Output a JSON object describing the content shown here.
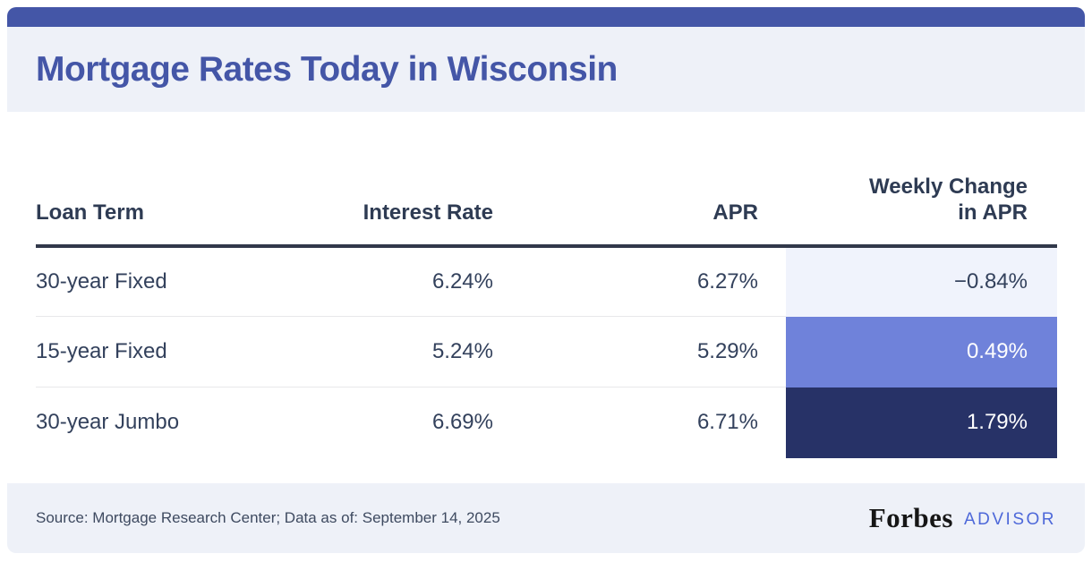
{
  "card": {
    "title": "Mortgage Rates Today in Wisconsin"
  },
  "table": {
    "headers": {
      "loan_term": "Loan Term",
      "interest_rate": "Interest Rate",
      "apr": "APR",
      "weekly_change": "Weekly Change in APR"
    },
    "rows": [
      {
        "loan_term": "30-year Fixed",
        "interest_rate": "6.24%",
        "apr": "6.27%",
        "weekly_change": "−0.84%",
        "change_bg": "#f0f3fc",
        "change_color": "#33415c"
      },
      {
        "loan_term": "15-year Fixed",
        "interest_rate": "5.24%",
        "apr": "5.29%",
        "weekly_change": "0.49%",
        "change_bg": "#6f82da",
        "change_color": "#ffffff"
      },
      {
        "loan_term": "30-year Jumbo",
        "interest_rate": "6.69%",
        "apr": "6.71%",
        "weekly_change": "1.79%",
        "change_bg": "#273267",
        "change_color": "#ffffff"
      }
    ]
  },
  "footer": {
    "source": "Source: Mortgage Research Center; Data as of: September 14, 2025",
    "brand": "Forbes",
    "brand_suffix": "ADVISOR"
  },
  "colors": {
    "accent_bar": "#4456a7",
    "title_text": "#4456a7",
    "panel_bg": "#eef1f8",
    "header_text": "#2e3b53",
    "row_text": "#33415c",
    "header_border": "#31384a",
    "row_divider": "#e8e8ea",
    "forbes_black": "#161616",
    "advisor_blue": "#4d68d9"
  },
  "chart_data": {
    "type": "table",
    "title": "Mortgage Rates Today in Wisconsin",
    "columns": [
      "Loan Term",
      "Interest Rate",
      "APR",
      "Weekly Change in APR"
    ],
    "rows": [
      [
        "30-year Fixed",
        "6.24%",
        "6.27%",
        "-0.84%"
      ],
      [
        "15-year Fixed",
        "5.24%",
        "5.29%",
        "0.49%"
      ],
      [
        "30-year Jumbo",
        "6.69%",
        "6.71%",
        "1.79%"
      ]
    ],
    "notes": "Weekly Change in APR cells are color-coded: -0.84% pale blue (#f0f3fc), 0.49% periwinkle (#6f82da), 1.79% dark navy (#273267)",
    "source": "Source: Mortgage Research Center; Data as of: September 14, 2025"
  }
}
